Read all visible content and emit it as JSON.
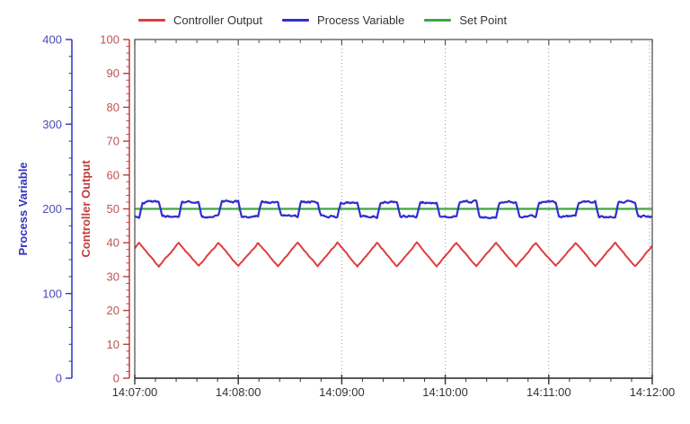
{
  "chart_data": {
    "type": "line",
    "title": "",
    "description": "PID control loop trend chart: sawtooth controller output, noisy square-wave process variable oscillating around a constant set point",
    "x_axis": {
      "label": "",
      "tick_labels": [
        "14:07:00",
        "14:08:00",
        "14:09:00",
        "14:10:00",
        "14:11:00",
        "14:12:00"
      ],
      "duration_s": 300,
      "major_step_s": 60,
      "minor_step_s": 12,
      "grid": "dotted vertical lines at major ticks"
    },
    "y_axes": [
      {
        "id": "pv",
        "title": "Process Variable",
        "min": 0,
        "max": 400,
        "major_step": 100,
        "minor_step": 20,
        "axis_color": "#3434bc",
        "text_color": "#4a4ab4"
      },
      {
        "id": "co",
        "title": "Controller Output",
        "min": 0,
        "max": 100,
        "major_step": 10,
        "minor_step": 2,
        "axis_color": "#c03c3c",
        "text_color": "#c05252"
      }
    ],
    "series": [
      {
        "name": "Controller Output",
        "axis": "co",
        "color": "#e03c3c",
        "waveform": {
          "shape": "triangle",
          "min": 33,
          "max": 40,
          "period_s": 23,
          "peak_at_s": 2.5,
          "noise": 0.18
        }
      },
      {
        "name": "Process Variable",
        "axis": "pv",
        "color": "#2f2fd0",
        "waveform": {
          "shape": "square-noisy",
          "low": 191,
          "high": 208,
          "period_s": 23,
          "high_start_s": 3,
          "duty": 0.5,
          "slew_units_per_s": 9,
          "noise": 1.8
        }
      },
      {
        "name": "Set Point",
        "axis": "pv",
        "color": "#3fa63f",
        "waveform": {
          "shape": "constant",
          "value": 200,
          "noise": 0
        }
      }
    ],
    "legend_position": "top",
    "noise_seed": 7,
    "frame_color": "#555555",
    "grid_color": "#999999",
    "x_text_color": "#333333"
  }
}
